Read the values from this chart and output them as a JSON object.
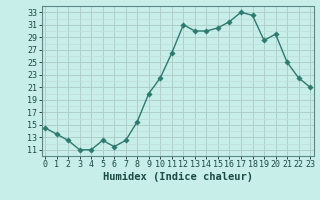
{
  "x": [
    0,
    1,
    2,
    3,
    4,
    5,
    6,
    7,
    8,
    9,
    10,
    11,
    12,
    13,
    14,
    15,
    16,
    17,
    18,
    19,
    20,
    21,
    22,
    23
  ],
  "y": [
    14.5,
    13.5,
    12.5,
    11,
    11,
    12.5,
    11.5,
    12.5,
    15.5,
    20,
    22.5,
    26.5,
    31,
    30,
    30,
    30.5,
    31.5,
    33,
    32.5,
    28.5,
    29.5,
    25,
    22.5,
    21
  ],
  "line_color": "#2d7a6e",
  "marker_color": "#2d7a6e",
  "bg_color": "#c8eeea",
  "grid_major_color": "#b0ceca",
  "grid_minor_color": "#c0deda",
  "xlabel": "Humidex (Indice chaleur)",
  "ytick_labels": [
    "11",
    "13",
    "15",
    "17",
    "19",
    "21",
    "23",
    "25",
    "27",
    "29",
    "31",
    "33"
  ],
  "ytick_vals": [
    11,
    13,
    15,
    17,
    19,
    21,
    23,
    25,
    27,
    29,
    31,
    33
  ],
  "xtick_vals": [
    0,
    1,
    2,
    3,
    4,
    5,
    6,
    7,
    8,
    9,
    10,
    11,
    12,
    13,
    14,
    15,
    16,
    17,
    18,
    19,
    20,
    21,
    22,
    23
  ],
  "ylim": [
    10.0,
    34.0
  ],
  "xlim": [
    -0.3,
    23.3
  ],
  "xlabel_fontsize": 7.5,
  "tick_fontsize": 6,
  "marker_size": 2.8,
  "linewidth": 1.0
}
